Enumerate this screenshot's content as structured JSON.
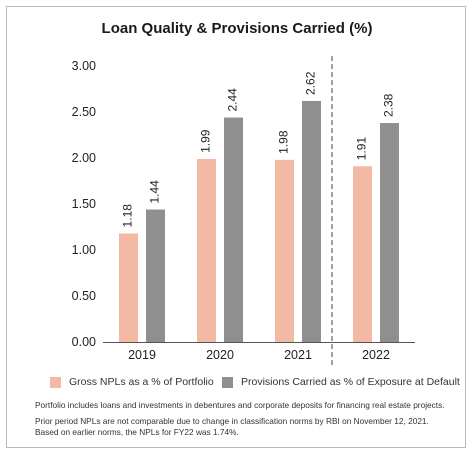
{
  "chart_data": {
    "type": "bar",
    "title": "Loan Quality & Provisions Carried (%)",
    "categories": [
      "2019",
      "2020",
      "2021",
      "2022"
    ],
    "series": [
      {
        "name": "Gross NPLs as a % of Portfolio",
        "values": [
          1.18,
          1.99,
          1.98,
          1.91
        ],
        "color": "#f4b9a5"
      },
      {
        "name": "Provisions Carried as % of Exposure at Default",
        "values": [
          1.44,
          2.44,
          2.62,
          2.38
        ],
        "color": "#8f8f8f"
      }
    ],
    "ylim": [
      0,
      3.0
    ],
    "yticks": [
      "0.00",
      "0.50",
      "1.00",
      "1.50",
      "2.00",
      "2.50",
      "3.00"
    ],
    "data_labels": [
      [
        "1.18",
        "1.99",
        "1.98",
        "1.91"
      ],
      [
        "1.44",
        "2.44",
        "2.62",
        "2.38"
      ]
    ],
    "divider_before_category": "2022",
    "xlabel": "",
    "ylabel": "",
    "legend_position": "bottom"
  },
  "notes": {
    "line1": "Portfolio includes loans and investments in debentures and corporate deposits for financing real estate projects.",
    "line2": "Prior period NPLs are not comparable due to change in classification norms by RBI on November 12, 2021.",
    "line3": "Based on earlier norms, the NPLs for FY22 was 1.74%."
  }
}
